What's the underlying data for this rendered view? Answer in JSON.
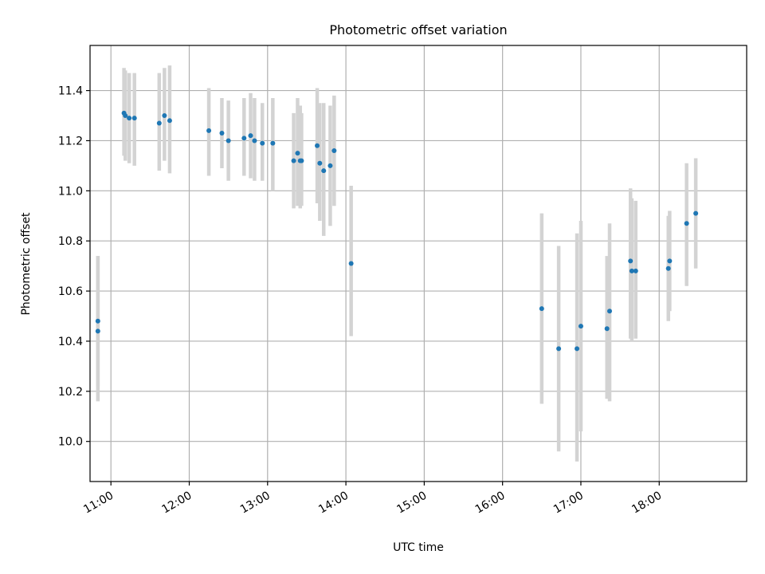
{
  "chart_data": {
    "type": "scatter",
    "title": "Photometric offset variation",
    "xlabel": "UTC time",
    "ylabel": "Photometric offset",
    "xlim": [
      "10:44",
      "19:07"
    ],
    "ylim": [
      9.84,
      11.58
    ],
    "x_ticks": [
      "11:00",
      "12:00",
      "13:00",
      "14:00",
      "15:00",
      "16:00",
      "17:00",
      "18:00"
    ],
    "y_ticks": [
      10.0,
      10.2,
      10.4,
      10.6,
      10.8,
      11.0,
      11.2,
      11.4
    ],
    "grid": true,
    "colors": {
      "point": "#1f77b4",
      "errorbar": "#d3d3d3",
      "grid": "#b0b0b0"
    },
    "series": [
      {
        "points": [
          {
            "x": "10:50",
            "y": 10.44,
            "lo": 10.16,
            "hi": 10.74
          },
          {
            "x": "10:50",
            "y": 10.48,
            "lo": 10.22,
            "hi": 10.74
          },
          {
            "x": "11:10",
            "y": 11.31,
            "lo": 11.14,
            "hi": 11.49
          },
          {
            "x": "11:11",
            "y": 11.3,
            "lo": 11.12,
            "hi": 11.48
          },
          {
            "x": "11:14",
            "y": 11.29,
            "lo": 11.11,
            "hi": 11.47
          },
          {
            "x": "11:18",
            "y": 11.29,
            "lo": 11.1,
            "hi": 11.47
          },
          {
            "x": "11:37",
            "y": 11.27,
            "lo": 11.08,
            "hi": 11.47
          },
          {
            "x": "11:41",
            "y": 11.3,
            "lo": 11.12,
            "hi": 11.49
          },
          {
            "x": "11:45",
            "y": 11.28,
            "lo": 11.07,
            "hi": 11.5
          },
          {
            "x": "12:15",
            "y": 11.24,
            "lo": 11.06,
            "hi": 11.41
          },
          {
            "x": "12:25",
            "y": 11.23,
            "lo": 11.09,
            "hi": 11.37
          },
          {
            "x": "12:30",
            "y": 11.2,
            "lo": 11.04,
            "hi": 11.36
          },
          {
            "x": "12:42",
            "y": 11.21,
            "lo": 11.06,
            "hi": 11.37
          },
          {
            "x": "12:47",
            "y": 11.22,
            "lo": 11.05,
            "hi": 11.39
          },
          {
            "x": "12:50",
            "y": 11.2,
            "lo": 11.04,
            "hi": 11.37
          },
          {
            "x": "12:56",
            "y": 11.19,
            "lo": 11.04,
            "hi": 11.35
          },
          {
            "x": "13:04",
            "y": 11.19,
            "lo": 11.0,
            "hi": 11.37
          },
          {
            "x": "13:20",
            "y": 11.12,
            "lo": 10.93,
            "hi": 11.31
          },
          {
            "x": "13:23",
            "y": 11.15,
            "lo": 10.94,
            "hi": 11.37
          },
          {
            "x": "13:25",
            "y": 11.12,
            "lo": 10.93,
            "hi": 11.34
          },
          {
            "x": "13:26",
            "y": 11.12,
            "lo": 10.94,
            "hi": 11.31
          },
          {
            "x": "13:38",
            "y": 11.18,
            "lo": 10.95,
            "hi": 11.41
          },
          {
            "x": "13:40",
            "y": 11.11,
            "lo": 10.88,
            "hi": 11.35
          },
          {
            "x": "13:43",
            "y": 11.08,
            "lo": 10.82,
            "hi": 11.35
          },
          {
            "x": "13:48",
            "y": 11.1,
            "lo": 10.86,
            "hi": 11.34
          },
          {
            "x": "13:51",
            "y": 11.16,
            "lo": 10.94,
            "hi": 11.38
          },
          {
            "x": "14:04",
            "y": 10.71,
            "lo": 10.42,
            "hi": 11.02
          },
          {
            "x": "16:30",
            "y": 10.53,
            "lo": 10.15,
            "hi": 10.91
          },
          {
            "x": "16:43",
            "y": 10.37,
            "lo": 9.96,
            "hi": 10.78
          },
          {
            "x": "16:57",
            "y": 10.37,
            "lo": 9.92,
            "hi": 10.83
          },
          {
            "x": "17:00",
            "y": 10.46,
            "lo": 10.04,
            "hi": 10.88
          },
          {
            "x": "17:20",
            "y": 10.45,
            "lo": 10.17,
            "hi": 10.74
          },
          {
            "x": "17:22",
            "y": 10.52,
            "lo": 10.16,
            "hi": 10.87
          },
          {
            "x": "17:38",
            "y": 10.72,
            "lo": 10.41,
            "hi": 11.01
          },
          {
            "x": "17:39",
            "y": 10.68,
            "lo": 10.4,
            "hi": 10.97
          },
          {
            "x": "17:42",
            "y": 10.68,
            "lo": 10.41,
            "hi": 10.96
          },
          {
            "x": "18:07",
            "y": 10.69,
            "lo": 10.48,
            "hi": 10.9
          },
          {
            "x": "18:08",
            "y": 10.72,
            "lo": 10.52,
            "hi": 10.92
          },
          {
            "x": "18:21",
            "y": 10.87,
            "lo": 10.62,
            "hi": 11.11
          },
          {
            "x": "18:28",
            "y": 10.91,
            "lo": 10.69,
            "hi": 11.13
          }
        ]
      }
    ]
  }
}
